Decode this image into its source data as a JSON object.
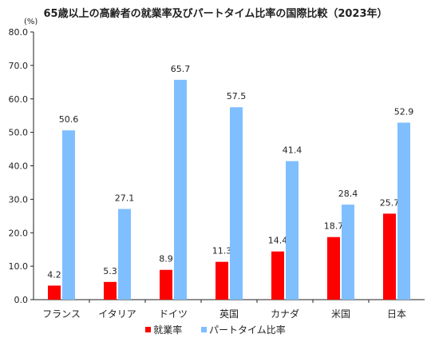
{
  "chart_data": {
    "type": "bar",
    "title": "65歳以上の高齢者の就業率及びパートタイム比率の国際比較（2023年）",
    "unit_label": "(%)",
    "categories": [
      "フランス",
      "イタリア",
      "ドイツ",
      "英国",
      "カナダ",
      "米国",
      "日本"
    ],
    "series": [
      {
        "name": "就業率",
        "color": "#ff0000",
        "values": [
          4.2,
          5.3,
          8.9,
          11.3,
          14.4,
          18.7,
          25.7
        ]
      },
      {
        "name": "パートタイム比率",
        "color": "#7fbfff",
        "values": [
          50.6,
          27.1,
          65.7,
          57.5,
          41.4,
          28.4,
          52.9
        ]
      }
    ],
    "ylim": [
      0,
      80
    ],
    "yticks": [
      "0.0",
      "10.0",
      "20.0",
      "30.0",
      "40.0",
      "50.0",
      "60.0",
      "70.0",
      "80.0"
    ],
    "grid": false,
    "legend_position": "bottom"
  }
}
